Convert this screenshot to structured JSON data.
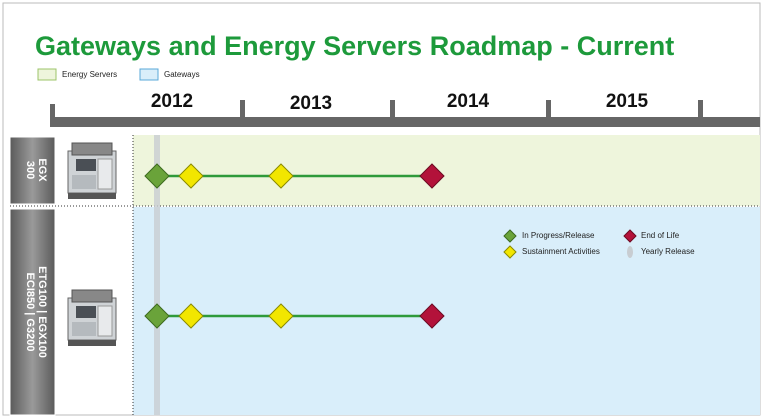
{
  "header": {
    "title": "Gateways and Energy Servers Roadmap - Current"
  },
  "key": {
    "energy_servers": "Energy Servers",
    "gateways": "Gateways"
  },
  "years": [
    "2012",
    "2013",
    "2014",
    "2015"
  ],
  "rows": [
    {
      "label_lines": [
        "EGX",
        "300"
      ]
    },
    {
      "label_lines": [
        "ETG100 | EGX100",
        "ECI850 | G3200"
      ]
    }
  ],
  "legend": {
    "in_progress": "In Progress/Release",
    "end_of_life": "End of Life",
    "sustainment": "Sustainment Activities",
    "yearly_release": "Yearly Release"
  }
}
